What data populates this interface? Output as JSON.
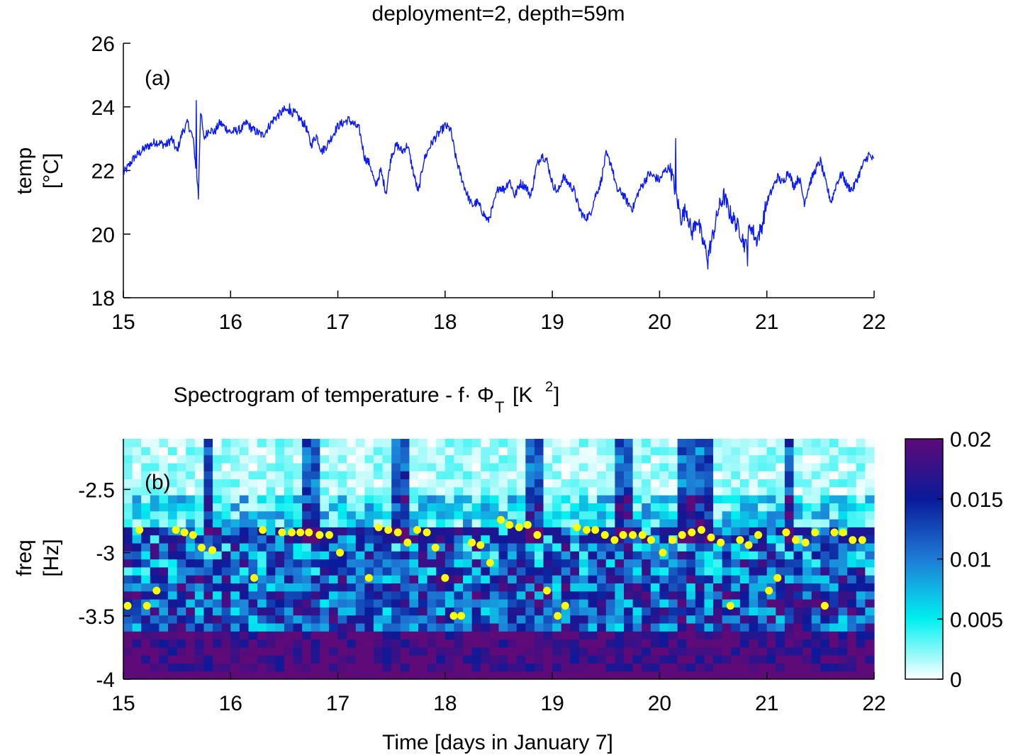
{
  "chart_data": [
    {
      "type": "line",
      "title": "deployment=2, depth=59m",
      "panel_label": "(a)",
      "ylabel_line1": "temp",
      "ylabel_line2": "[°C]",
      "xlabel": "",
      "xlim": [
        15,
        22
      ],
      "ylim": [
        18,
        26
      ],
      "xticks": [
        15,
        16,
        17,
        18,
        19,
        20,
        21,
        22
      ],
      "yticks": [
        18,
        20,
        22,
        24,
        26
      ],
      "series": [
        {
          "name": "temperature",
          "color": "#0a1aff",
          "anchors": [
            [
              15.0,
              21.9
            ],
            [
              15.1,
              22.4
            ],
            [
              15.2,
              22.7
            ],
            [
              15.3,
              22.9
            ],
            [
              15.4,
              22.8
            ],
            [
              15.45,
              23.0
            ],
            [
              15.5,
              22.6
            ],
            [
              15.55,
              23.2
            ],
            [
              15.6,
              23.5
            ],
            [
              15.65,
              23.0
            ],
            [
              15.7,
              21.3
            ],
            [
              15.72,
              23.9
            ],
            [
              15.75,
              23.0
            ],
            [
              15.8,
              23.3
            ],
            [
              15.85,
              23.2
            ],
            [
              15.9,
              23.5
            ],
            [
              16.0,
              23.2
            ],
            [
              16.1,
              23.3
            ],
            [
              16.15,
              23.5
            ],
            [
              16.2,
              23.3
            ],
            [
              16.3,
              23.1
            ],
            [
              16.4,
              23.6
            ],
            [
              16.5,
              23.9
            ],
            [
              16.6,
              23.8
            ],
            [
              16.7,
              23.4
            ],
            [
              16.75,
              22.8
            ],
            [
              16.8,
              23.1
            ],
            [
              16.85,
              22.6
            ],
            [
              16.9,
              22.8
            ],
            [
              17.0,
              23.4
            ],
            [
              17.1,
              23.6
            ],
            [
              17.2,
              23.3
            ],
            [
              17.25,
              22.4
            ],
            [
              17.3,
              22.2
            ],
            [
              17.35,
              21.5
            ],
            [
              17.4,
              22.0
            ],
            [
              17.45,
              21.3
            ],
            [
              17.5,
              22.5
            ],
            [
              17.55,
              22.8
            ],
            [
              17.6,
              22.6
            ],
            [
              17.65,
              22.8
            ],
            [
              17.7,
              22.0
            ],
            [
              17.75,
              21.3
            ],
            [
              17.8,
              22.3
            ],
            [
              17.85,
              22.7
            ],
            [
              17.9,
              23.0
            ],
            [
              17.95,
              23.2
            ],
            [
              18.0,
              23.4
            ],
            [
              18.05,
              23.3
            ],
            [
              18.1,
              22.4
            ],
            [
              18.15,
              21.8
            ],
            [
              18.2,
              21.3
            ],
            [
              18.25,
              20.9
            ],
            [
              18.3,
              21.0
            ],
            [
              18.35,
              20.7
            ],
            [
              18.4,
              20.4
            ],
            [
              18.45,
              20.9
            ],
            [
              18.5,
              21.5
            ],
            [
              18.55,
              21.4
            ],
            [
              18.6,
              21.7
            ],
            [
              18.65,
              21.2
            ],
            [
              18.7,
              21.6
            ],
            [
              18.75,
              21.5
            ],
            [
              18.8,
              21.2
            ],
            [
              18.85,
              22.1
            ],
            [
              18.9,
              22.5
            ],
            [
              18.95,
              22.3
            ],
            [
              19.0,
              21.6
            ],
            [
              19.05,
              21.3
            ],
            [
              19.1,
              21.8
            ],
            [
              19.15,
              21.6
            ],
            [
              19.2,
              21.4
            ],
            [
              19.25,
              20.8
            ],
            [
              19.3,
              20.5
            ],
            [
              19.35,
              20.6
            ],
            [
              19.4,
              21.2
            ],
            [
              19.45,
              21.6
            ],
            [
              19.5,
              22.5
            ],
            [
              19.55,
              22.2
            ],
            [
              19.6,
              21.4
            ],
            [
              19.65,
              21.3
            ],
            [
              19.7,
              21.0
            ],
            [
              19.75,
              20.8
            ],
            [
              19.8,
              21.3
            ],
            [
              19.85,
              21.6
            ],
            [
              19.9,
              21.9
            ],
            [
              19.95,
              21.8
            ],
            [
              20.0,
              21.7
            ],
            [
              20.05,
              22.0
            ],
            [
              20.1,
              22.1
            ],
            [
              20.15,
              21.3
            ],
            [
              20.2,
              20.5
            ],
            [
              20.25,
              20.8
            ],
            [
              20.3,
              20.0
            ],
            [
              20.35,
              20.5
            ],
            [
              20.4,
              19.8
            ],
            [
              20.45,
              19.3
            ],
            [
              20.5,
              20.0
            ],
            [
              20.55,
              20.8
            ],
            [
              20.6,
              21.2
            ],
            [
              20.65,
              20.7
            ],
            [
              20.7,
              20.4
            ],
            [
              20.75,
              20.1
            ],
            [
              20.8,
              19.6
            ],
            [
              20.85,
              20.3
            ],
            [
              20.9,
              19.8
            ],
            [
              20.95,
              20.2
            ],
            [
              21.0,
              21.0
            ],
            [
              21.05,
              21.4
            ],
            [
              21.1,
              21.8
            ],
            [
              21.15,
              21.6
            ],
            [
              21.2,
              22.0
            ],
            [
              21.25,
              21.5
            ],
            [
              21.3,
              21.8
            ],
            [
              21.35,
              21.0
            ],
            [
              21.4,
              21.6
            ],
            [
              21.45,
              22.0
            ],
            [
              21.5,
              22.3
            ],
            [
              21.55,
              21.6
            ],
            [
              21.6,
              21.0
            ],
            [
              21.65,
              21.6
            ],
            [
              21.7,
              21.9
            ],
            [
              21.75,
              21.5
            ],
            [
              21.8,
              21.4
            ],
            [
              21.85,
              21.8
            ],
            [
              21.9,
              22.2
            ],
            [
              21.95,
              22.5
            ],
            [
              22.0,
              22.3
            ]
          ],
          "spikes": [
            [
              15.68,
              24.2
            ],
            [
              15.7,
              21.1
            ],
            [
              16.55,
              24.1
            ],
            [
              20.15,
              23.0
            ],
            [
              20.45,
              18.9
            ],
            [
              20.82,
              19.0
            ]
          ]
        }
      ]
    },
    {
      "type": "heatmap",
      "title_text": "Spectrogram of temperature - f· Φ",
      "title_sub": "T",
      "title_units": "[K",
      "title_units_sup": "2",
      "title_units_close": "]",
      "panel_label": "(b)",
      "xlabel": "Time [days in January 7]",
      "ylabel_line1": "freq",
      "ylabel_line2": "[Hz]",
      "xlim": [
        15,
        22
      ],
      "ylim": [
        -4,
        -2.1
      ],
      "xticks": [
        15,
        16,
        17,
        18,
        19,
        20,
        21,
        22
      ],
      "yticks": [
        -4,
        -3.5,
        -3,
        -2.5
      ],
      "colorbar": {
        "clim": [
          0,
          0.02
        ],
        "ticks": [
          0,
          0.005,
          0.01,
          0.015,
          0.02
        ],
        "tick_labels": [
          "0",
          "0.005",
          "0.01",
          "0.015",
          "0.02"
        ],
        "colors": [
          "#ffffff",
          "#00f0f0",
          "#1e7bd6",
          "#0a1a9a",
          "#5e0a78"
        ]
      },
      "peaks": {
        "color": "#ffff00",
        "points": [
          [
            15.04,
            -3.42
          ],
          [
            15.15,
            -2.82
          ],
          [
            15.22,
            -3.42
          ],
          [
            15.31,
            -3.3
          ],
          [
            15.49,
            -2.82
          ],
          [
            15.57,
            -2.84
          ],
          [
            15.65,
            -2.86
          ],
          [
            15.73,
            -2.96
          ],
          [
            15.83,
            -2.98
          ],
          [
            16.22,
            -3.2
          ],
          [
            16.3,
            -2.82
          ],
          [
            16.48,
            -2.84
          ],
          [
            16.57,
            -2.84
          ],
          [
            16.65,
            -2.84
          ],
          [
            16.73,
            -2.84
          ],
          [
            16.83,
            -2.86
          ],
          [
            16.92,
            -2.86
          ],
          [
            17.02,
            -3.0
          ],
          [
            17.29,
            -3.2
          ],
          [
            17.38,
            -2.8
          ],
          [
            17.47,
            -2.82
          ],
          [
            17.56,
            -2.84
          ],
          [
            17.65,
            -2.92
          ],
          [
            17.74,
            -2.82
          ],
          [
            17.83,
            -2.84
          ],
          [
            17.91,
            -2.96
          ],
          [
            18.0,
            -3.2
          ],
          [
            18.08,
            -3.5
          ],
          [
            18.15,
            -3.5
          ],
          [
            18.25,
            -2.92
          ],
          [
            18.33,
            -2.94
          ],
          [
            18.42,
            -3.08
          ],
          [
            18.52,
            -2.74
          ],
          [
            18.6,
            -2.78
          ],
          [
            18.69,
            -2.8
          ],
          [
            18.77,
            -2.78
          ],
          [
            18.86,
            -2.86
          ],
          [
            18.95,
            -3.3
          ],
          [
            19.05,
            -3.5
          ],
          [
            19.12,
            -3.42
          ],
          [
            19.23,
            -2.8
          ],
          [
            19.32,
            -2.82
          ],
          [
            19.4,
            -2.82
          ],
          [
            19.49,
            -2.86
          ],
          [
            19.58,
            -2.9
          ],
          [
            19.66,
            -2.86
          ],
          [
            19.75,
            -2.86
          ],
          [
            19.84,
            -2.86
          ],
          [
            19.92,
            -2.9
          ],
          [
            20.03,
            -3.0
          ],
          [
            20.12,
            -2.9
          ],
          [
            20.21,
            -2.86
          ],
          [
            20.3,
            -2.84
          ],
          [
            20.39,
            -2.82
          ],
          [
            20.48,
            -2.88
          ],
          [
            20.57,
            -2.92
          ],
          [
            20.66,
            -3.42
          ],
          [
            20.75,
            -2.9
          ],
          [
            20.83,
            -2.94
          ],
          [
            20.92,
            -2.86
          ],
          [
            21.02,
            -3.3
          ],
          [
            21.1,
            -3.2
          ],
          [
            21.18,
            -2.84
          ],
          [
            21.27,
            -2.9
          ],
          [
            21.36,
            -2.92
          ],
          [
            21.45,
            -2.84
          ],
          [
            21.54,
            -3.42
          ],
          [
            21.63,
            -2.84
          ],
          [
            21.71,
            -2.84
          ],
          [
            21.8,
            -2.9
          ],
          [
            21.89,
            -2.9
          ]
        ]
      },
      "dark_columns": [
        15.8,
        16.7,
        16.75,
        17.6,
        18.85,
        19.65,
        20.25,
        20.4,
        21.2
      ],
      "grid": {
        "n_time": 84,
        "n_freq": 30,
        "seed": 7
      }
    }
  ]
}
